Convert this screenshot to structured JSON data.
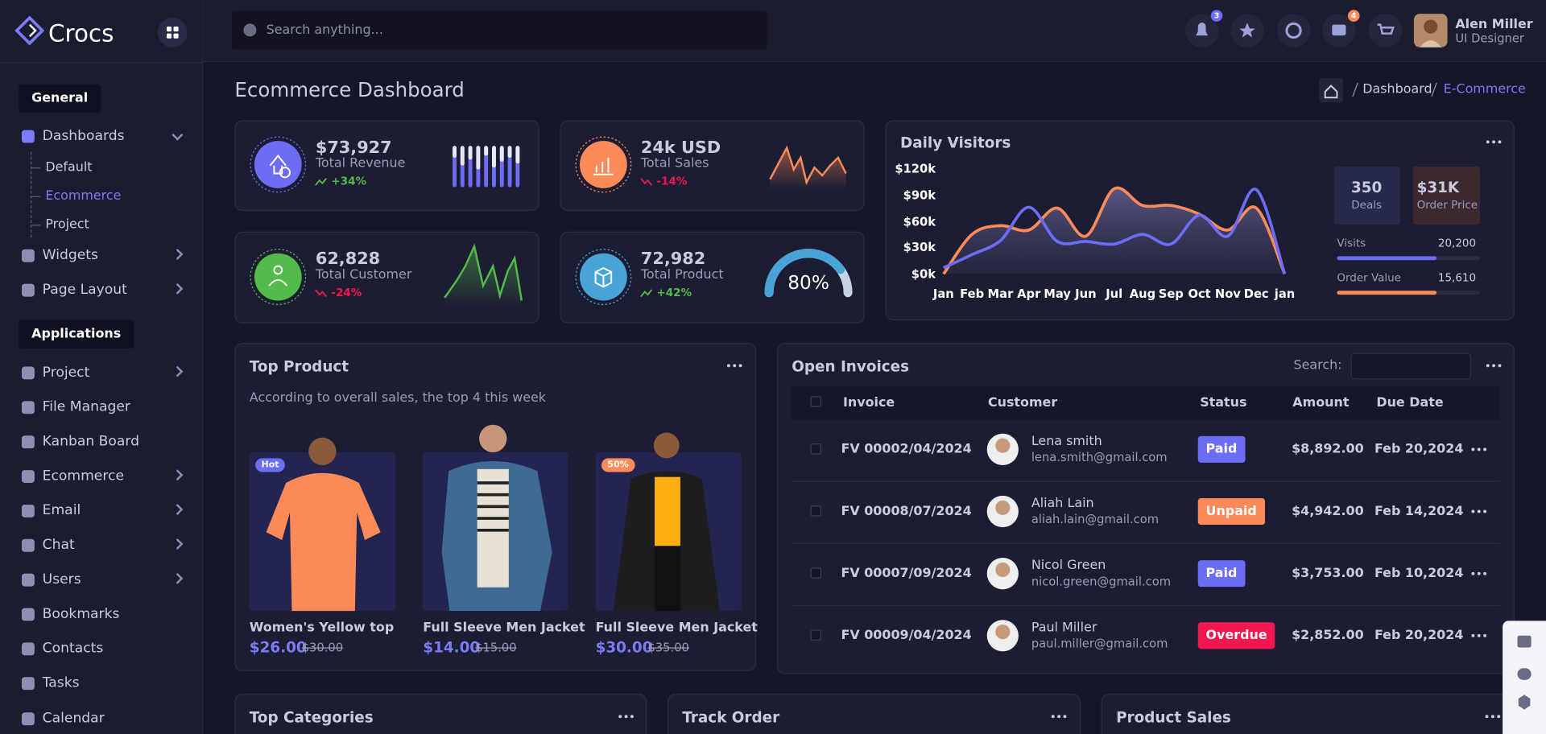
{
  "sidebar": {
    "brand": "Crocs",
    "sections": [
      {
        "title": "General",
        "items": [
          {
            "label": "Dashboards",
            "expandable": true,
            "children": [
              "Default",
              "Ecommerce",
              "Project"
            ]
          },
          {
            "label": "Widgets",
            "expandable": true
          },
          {
            "label": "Page Layout",
            "expandable": true
          }
        ]
      },
      {
        "title": "Applications",
        "items": [
          {
            "label": "Project",
            "expandable": true
          },
          {
            "label": "File Manager"
          },
          {
            "label": "Kanban Board"
          },
          {
            "label": "Ecommerce",
            "expandable": true
          },
          {
            "label": "Email",
            "expandable": true
          },
          {
            "label": "Chat",
            "expandable": true
          },
          {
            "label": "Users",
            "expandable": true
          },
          {
            "label": "Bookmarks"
          },
          {
            "label": "Contacts"
          },
          {
            "label": "Tasks"
          },
          {
            "label": "Calendar"
          }
        ]
      }
    ]
  },
  "header": {
    "search_placeholder": "Search anything...",
    "notification_badge": "3",
    "message_badge": "4",
    "user": {
      "name": "Alen Miller",
      "role": "UI Designer"
    }
  },
  "page": {
    "title": "Ecommerce Dashboard",
    "breadcrumb": [
      "Dashboard",
      "E-Commerce"
    ]
  },
  "stats": [
    {
      "value": "$73,927",
      "label": "Total Revenue",
      "change": "+34%",
      "trend": "up"
    },
    {
      "value": "24k USD",
      "label": "Total Sales",
      "change": "-14%",
      "trend": "down"
    },
    {
      "value": "62,828",
      "label": "Total Customer",
      "change": "-24%",
      "trend": "down"
    },
    {
      "value": "72,982",
      "label": "Total Product",
      "change": "+42%",
      "trend": "up",
      "gauge": {
        "value": 80,
        "label": "80%"
      }
    }
  ],
  "daily_visitors": {
    "title": "Daily Visitors",
    "summary": [
      {
        "value": "350",
        "label": "Deals"
      },
      {
        "value": "$31K",
        "label": "Order Price"
      }
    ],
    "progress": [
      {
        "label": "Visits",
        "value": "20,200"
      },
      {
        "label": "Order Value",
        "value": "15,610"
      }
    ],
    "chart": {
      "type": "line",
      "categories": [
        "Jan",
        "Feb",
        "Mar",
        "Apr",
        "May",
        "Jun",
        "Jul",
        "Aug",
        "Sep",
        "Oct",
        "Nov",
        "Dec",
        "jan"
      ],
      "ylim": [
        0,
        120
      ],
      "yticks": [
        {
          "value": 0,
          "label": "$0k"
        },
        {
          "value": 30,
          "label": "$30k"
        },
        {
          "value": 60,
          "label": "$60k"
        },
        {
          "value": 90,
          "label": "$90k"
        },
        {
          "value": 120,
          "label": "$120k"
        }
      ],
      "series": [
        {
          "color": "#fd8b59",
          "values": [
            0,
            45,
            55,
            50,
            75,
            43,
            97,
            78,
            78,
            68,
            50,
            75,
            0
          ]
        },
        {
          "color": "#6c6cf5",
          "values": [
            7,
            22,
            38,
            76,
            37,
            37,
            34,
            45,
            34,
            67,
            43,
            96,
            0
          ]
        }
      ]
    }
  },
  "top_product": {
    "title": "Top Product",
    "subtitle": "According to overall sales, the top 4 this week",
    "products": [
      {
        "badge": "Hot",
        "name": "Women's Yellow top",
        "price": "$26.00",
        "old_price": "$30.00"
      },
      {
        "name": "Full Sleeve Men Jacket",
        "price": "$14.00",
        "old_price": "$15.00"
      },
      {
        "badge": "50%",
        "name": "Full Sleeve Men Jacket",
        "price": "$30.00",
        "old_price": "$35.00"
      }
    ]
  },
  "invoices": {
    "title": "Open Invoices",
    "search_label": "Search:",
    "columns": [
      "Invoice",
      "Customer",
      "Status",
      "Amount",
      "Due Date"
    ],
    "rows": [
      {
        "invoice": "FV 00002/04/2024",
        "name": "Lena smith",
        "email": "lena.smith@gmail.com",
        "status": "Paid",
        "status_color": "#6c6cf5",
        "amount": "$8,892.00",
        "due": "Feb 20,2024"
      },
      {
        "invoice": "FV 00008/07/2024",
        "name": "Aliah Lain",
        "email": "aliah.lain@gmail.com",
        "status": "Unpaid",
        "status_color": "#fd8b59",
        "amount": "$4,942.00",
        "due": "Feb 14,2024"
      },
      {
        "invoice": "FV 00007/09/2024",
        "name": "Nicol Green",
        "email": "nicol.green@gmail.com",
        "status": "Paid",
        "status_color": "#6c6cf5",
        "amount": "$3,753.00",
        "due": "Feb 10,2024"
      },
      {
        "invoice": "FV 00009/04/2024",
        "name": "Paul Miller",
        "email": "paul.miller@gmail.com",
        "status": "Overdue",
        "status_color": "#f31650",
        "amount": "$2,852.00",
        "due": "Feb 20,2024"
      }
    ]
  },
  "bottom_cards": [
    "Top Categories",
    "Track Order",
    "Product Sales"
  ]
}
